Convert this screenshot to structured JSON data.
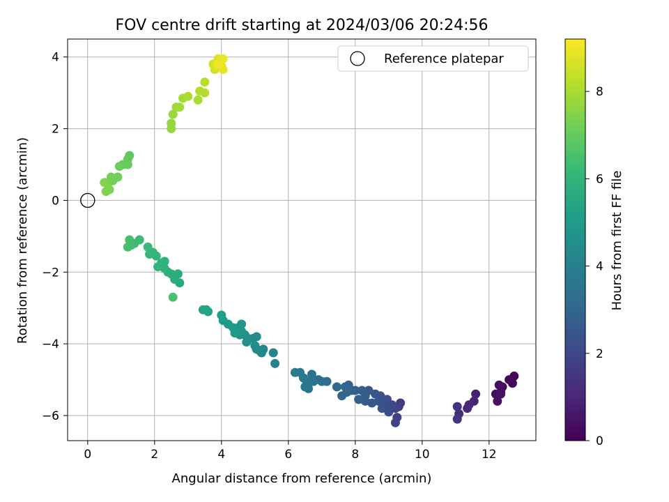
{
  "chart_data": {
    "type": "scatter",
    "title": "FOV centre drift starting at 2024/03/06 20:24:56",
    "xlabel": "Angular distance from reference (arcmin)",
    "ylabel": "Rotation from reference (arcmin)",
    "xlim": [
      -0.6,
      13.4
    ],
    "ylim": [
      -6.7,
      4.5
    ],
    "x_ticks": [
      0,
      2,
      4,
      6,
      8,
      10,
      12
    ],
    "y_ticks": [
      -6,
      -4,
      -2,
      0,
      2,
      4
    ],
    "x_tick_labels": [
      "0",
      "2",
      "4",
      "6",
      "8",
      "10",
      "12"
    ],
    "y_tick_labels": [
      "−6",
      "−4",
      "−2",
      "0",
      "2",
      "4"
    ],
    "grid": true,
    "legend": {
      "placement": "top-right",
      "entries": [
        "Reference platepar"
      ]
    },
    "reference_point": {
      "x": 0,
      "y": 0,
      "label": "Reference platepar"
    },
    "colorbar": {
      "label": "Hours from first FF file",
      "range": [
        0,
        9.2
      ],
      "ticks": [
        0,
        2,
        4,
        6,
        8
      ],
      "tick_labels": [
        "0",
        "2",
        "4",
        "6",
        "8"
      ],
      "colormap": "viridis"
    },
    "points": [
      [
        12.75,
        -4.9,
        0.05
      ],
      [
        12.7,
        -5.1,
        0.1
      ],
      [
        12.6,
        -5.0,
        0.15
      ],
      [
        12.4,
        -5.2,
        0.2
      ],
      [
        12.35,
        -5.35,
        0.25
      ],
      [
        12.3,
        -5.15,
        0.3
      ],
      [
        12.2,
        -5.4,
        0.35
      ],
      [
        12.25,
        -5.6,
        0.4
      ],
      [
        12.35,
        -5.4,
        0.45
      ],
      [
        11.6,
        -5.4,
        0.8
      ],
      [
        11.55,
        -5.6,
        0.9
      ],
      [
        11.4,
        -5.7,
        1.0
      ],
      [
        11.35,
        -5.8,
        1.1
      ],
      [
        11.1,
        -5.95,
        1.2
      ],
      [
        11.05,
        -5.75,
        1.3
      ],
      [
        11.05,
        -6.1,
        1.4
      ],
      [
        9.35,
        -5.65,
        1.6
      ],
      [
        9.3,
        -5.75,
        1.7
      ],
      [
        9.25,
        -6.05,
        1.8
      ],
      [
        9.2,
        -6.2,
        1.9
      ],
      [
        9.2,
        -5.8,
        1.95
      ],
      [
        9.1,
        -5.7,
        2.0
      ],
      [
        9.0,
        -5.9,
        2.1
      ],
      [
        8.95,
        -5.55,
        2.15
      ],
      [
        8.9,
        -5.75,
        2.2
      ],
      [
        8.85,
        -5.6,
        2.25
      ],
      [
        8.8,
        -5.8,
        2.3
      ],
      [
        8.75,
        -5.45,
        2.35
      ],
      [
        8.7,
        -5.6,
        2.4
      ],
      [
        8.6,
        -5.4,
        2.45
      ],
      [
        8.5,
        -5.65,
        2.5
      ],
      [
        8.4,
        -5.3,
        2.55
      ],
      [
        8.3,
        -5.6,
        2.6
      ],
      [
        8.3,
        -5.45,
        2.65
      ],
      [
        8.2,
        -5.3,
        2.7
      ],
      [
        8.1,
        -5.55,
        2.75
      ],
      [
        8.0,
        -5.3,
        2.8
      ],
      [
        7.9,
        -5.3,
        2.85
      ],
      [
        7.8,
        -5.15,
        2.9
      ],
      [
        7.75,
        -5.35,
        2.95
      ],
      [
        7.7,
        -5.2,
        3.0
      ],
      [
        7.6,
        -5.45,
        3.05
      ],
      [
        7.45,
        -5.2,
        3.1
      ],
      [
        7.15,
        -5.05,
        3.3
      ],
      [
        7.0,
        -5.05,
        3.35
      ],
      [
        6.9,
        -5.0,
        3.4
      ],
      [
        6.75,
        -5.05,
        3.45
      ],
      [
        6.7,
        -4.85,
        3.5
      ],
      [
        6.6,
        -5.25,
        3.55
      ],
      [
        6.55,
        -5.05,
        3.6
      ],
      [
        6.5,
        -5.2,
        3.65
      ],
      [
        6.45,
        -4.95,
        3.7
      ],
      [
        6.35,
        -4.8,
        3.75
      ],
      [
        6.2,
        -4.8,
        3.8
      ],
      [
        5.6,
        -4.55,
        4.1
      ],
      [
        5.55,
        -4.25,
        4.15
      ],
      [
        5.25,
        -4.15,
        4.2
      ],
      [
        5.2,
        -4.25,
        4.25
      ],
      [
        5.15,
        -4.2,
        4.3
      ],
      [
        5.05,
        -4.15,
        4.35
      ],
      [
        5.0,
        -4.05,
        4.4
      ],
      [
        5.05,
        -3.8,
        4.45
      ],
      [
        4.95,
        -3.85,
        4.5
      ],
      [
        4.8,
        -3.85,
        4.55
      ],
      [
        4.75,
        -3.95,
        4.6
      ],
      [
        4.7,
        -3.75,
        4.65
      ],
      [
        4.6,
        -3.65,
        4.7
      ],
      [
        4.55,
        -3.75,
        4.75
      ],
      [
        4.6,
        -3.45,
        4.8
      ],
      [
        4.5,
        -3.55,
        4.85
      ],
      [
        4.4,
        -3.7,
        4.9
      ],
      [
        4.35,
        -3.55,
        4.95
      ],
      [
        4.2,
        -3.45,
        5.0
      ],
      [
        4.05,
        -3.35,
        5.05
      ],
      [
        4.0,
        -3.2,
        5.1
      ],
      [
        3.6,
        -3.1,
        5.3
      ],
      [
        3.55,
        -3.05,
        5.35
      ],
      [
        3.45,
        -3.05,
        5.4
      ],
      [
        2.75,
        -2.3,
        5.6
      ],
      [
        2.7,
        -2.05,
        5.65
      ],
      [
        2.6,
        -2.2,
        5.7
      ],
      [
        2.5,
        -2.05,
        5.75
      ],
      [
        2.4,
        -2.0,
        5.8
      ],
      [
        2.3,
        -1.9,
        5.85
      ],
      [
        2.3,
        -1.7,
        5.9
      ],
      [
        2.2,
        -1.75,
        5.95
      ],
      [
        2.1,
        -1.85,
        6.0
      ],
      [
        2.05,
        -1.55,
        6.05
      ],
      [
        1.95,
        -1.45,
        6.1
      ],
      [
        1.85,
        -1.5,
        6.15
      ],
      [
        1.8,
        -1.3,
        6.2
      ],
      [
        1.55,
        -1.1,
        6.25
      ],
      [
        1.4,
        -1.2,
        6.3
      ],
      [
        1.3,
        -1.25,
        6.35
      ],
      [
        1.25,
        -1.1,
        6.4
      ],
      [
        1.2,
        -1.3,
        6.45
      ],
      [
        2.55,
        -2.7,
        6.5
      ],
      [
        1.25,
        1.25,
        6.9
      ],
      [
        1.2,
        1.15,
        6.95
      ],
      [
        1.2,
        1.0,
        7.0
      ],
      [
        1.05,
        1.0,
        7.05
      ],
      [
        0.95,
        0.95,
        7.1
      ],
      [
        0.9,
        0.65,
        7.15
      ],
      [
        0.75,
        0.55,
        7.2
      ],
      [
        0.7,
        0.65,
        7.25
      ],
      [
        0.6,
        0.45,
        7.3
      ],
      [
        0.65,
        0.3,
        7.35
      ],
      [
        0.55,
        0.25,
        7.4
      ],
      [
        0.5,
        0.5,
        7.45
      ],
      [
        2.5,
        2.0,
        7.7
      ],
      [
        2.5,
        2.15,
        7.75
      ],
      [
        2.55,
        2.4,
        7.8
      ],
      [
        2.65,
        2.6,
        7.85
      ],
      [
        2.75,
        2.6,
        7.9
      ],
      [
        2.85,
        2.85,
        7.95
      ],
      [
        3.0,
        2.9,
        8.0
      ],
      [
        3.3,
        2.8,
        8.05
      ],
      [
        3.35,
        3.05,
        8.1
      ],
      [
        3.5,
        3.0,
        8.15
      ],
      [
        3.5,
        3.3,
        8.2
      ],
      [
        3.75,
        3.8,
        8.6
      ],
      [
        3.8,
        3.65,
        8.65
      ],
      [
        3.85,
        3.75,
        8.7
      ],
      [
        3.9,
        3.95,
        8.75
      ],
      [
        3.95,
        3.85,
        8.8
      ],
      [
        4.0,
        3.75,
        8.85
      ],
      [
        4.05,
        3.65,
        8.9
      ],
      [
        4.05,
        3.95,
        8.95
      ],
      [
        3.9,
        3.8,
        9.0
      ]
    ]
  }
}
